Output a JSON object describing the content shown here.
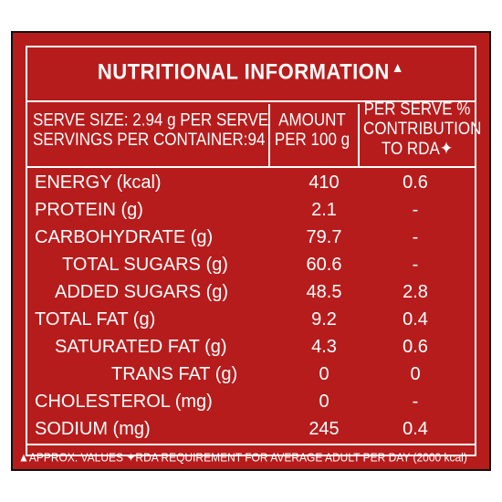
{
  "panel": {
    "title": "NUTRITIONAL INFORMATION",
    "title_mark": "▲",
    "header": {
      "serve_size": "SERVE SIZE: 2.94 g PER SERVE",
      "servings": "SERVINGS PER CONTAINER:94",
      "amount_line1": "AMOUNT",
      "amount_line2": "PER 100 g",
      "rda_line1": "PER SERVE %",
      "rda_line2": "CONTRIBUTION",
      "rda_line3": "TO RDA✦"
    },
    "rows": [
      {
        "name": "ENERGY (kcal)",
        "amount": "410",
        "rda": "0.6"
      },
      {
        "name": "PROTEIN (g)",
        "amount": "2.1",
        "rda": "-"
      },
      {
        "name": "CARBOHYDRATE (g)",
        "amount": "79.7",
        "rda": "-"
      },
      {
        "name": "TOTAL SUGARS (g)",
        "amount": "60.6",
        "rda": "-"
      },
      {
        "name": "ADDED SUGARS (g)",
        "amount": "48.5",
        "rda": "2.8"
      },
      {
        "name": "TOTAL FAT (g)",
        "amount": "9.2",
        "rda": "0.4"
      },
      {
        "name": "SATURATED FAT (g)",
        "amount": "4.3",
        "rda": "0.6"
      },
      {
        "name": "TRANS FAT (g)",
        "amount": "0",
        "rda": "0"
      },
      {
        "name": "CHOLESTEROL (mg)",
        "amount": "0",
        "rda": "-"
      },
      {
        "name": "SODIUM (mg)",
        "amount": "245",
        "rda": "0.4"
      }
    ],
    "footnote": "▲APPROX. VALUES  ✦RDA REQUIREMENT FOR AVERAGE ADULT PER DAY (2000 kcal)"
  },
  "colors": {
    "background": "#b71c1c",
    "text": "#ffffff"
  }
}
